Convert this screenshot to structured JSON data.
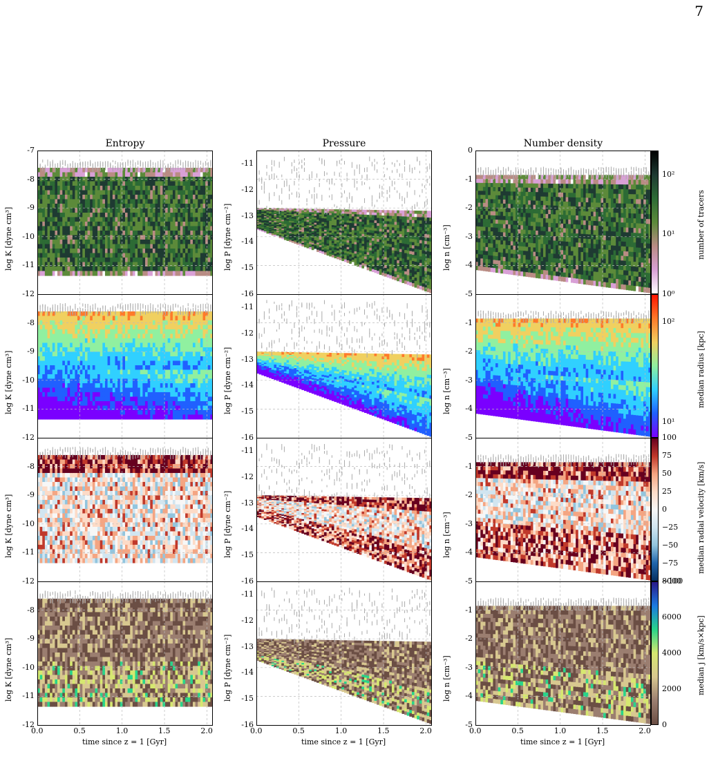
{
  "page_number": "7",
  "columns": [
    "Entropy",
    "Pressure",
    "Number density"
  ],
  "ylabels": [
    "log K [dyne cm³]",
    "log P [dyne cm⁻²]",
    "log n [cm⁻³]"
  ],
  "xlabel": "time since z = 1 [Gyr]",
  "x_ticks": [
    "0.0",
    "0.5",
    "1.0",
    "1.5",
    "2.0"
  ],
  "y_ticks": {
    "entropy": [
      "-7",
      "-8",
      "-9",
      "-10",
      "-11",
      "-12"
    ],
    "pressure": [
      "-11",
      "-12",
      "-13",
      "-14",
      "-15",
      "-16"
    ],
    "density": [
      "0",
      "-1",
      "-2",
      "-3",
      "-4",
      "-5"
    ]
  },
  "colorbars": [
    {
      "label": "number of tracers",
      "ticks": [
        "10²",
        "10¹",
        "10⁰"
      ],
      "colors": [
        "#000000",
        "#1e3a32",
        "#2d6b35",
        "#5c8a3a",
        "#b98c84",
        "#d9a0d6",
        "#ffffff"
      ]
    },
    {
      "label": "median radius [kpc]",
      "ticks": [
        "10²",
        "10¹"
      ],
      "colors": [
        "#ff1500",
        "#ff7a2a",
        "#f0d060",
        "#90f0a0",
        "#30d0ff",
        "#2060ff",
        "#7a00ff"
      ]
    },
    {
      "label": "median radial velocity [km/s]",
      "ticks": [
        "100",
        "75",
        "50",
        "25",
        "0",
        "−25",
        "−50",
        "−75",
        "−100"
      ],
      "colors": [
        "#67001f",
        "#c0392b",
        "#f4a582",
        "#fddbc7",
        "#f7f7f7",
        "#d1e5f0",
        "#92c5de",
        "#2166ac",
        "#053061"
      ]
    },
    {
      "label": "median j [km/s×kpc]",
      "ticks": [
        "8000",
        "6000",
        "4000",
        "2000",
        "0"
      ],
      "colors": [
        "#2a1a8a",
        "#1b7ae0",
        "#2ad48a",
        "#d6e870",
        "#d8c890",
        "#9b7e70",
        "#6b4e44"
      ]
    }
  ],
  "chart_data": {
    "type": "heatmap",
    "title": "",
    "xlabel": "time since z = 1 [Gyr]",
    "xlim": [
      0.0,
      2.07
    ],
    "columns": [
      {
        "title": "Entropy",
        "ylabel": "log K [dyne cm³]",
        "ylim": [
          -12,
          -7
        ]
      },
      {
        "title": "Pressure",
        "ylabel": "log P [dyne cm⁻²]",
        "ylim": [
          -16,
          -10.5
        ]
      },
      {
        "title": "Number density",
        "ylabel": "log n [cm⁻³]",
        "ylim": [
          -5,
          0
        ]
      }
    ],
    "rows": [
      {
        "quantity": "number of tracers",
        "scale": "log",
        "range": [
          1,
          200
        ]
      },
      {
        "quantity": "median radius [kpc]",
        "scale": "log",
        "range": [
          8,
          200
        ]
      },
      {
        "quantity": "median radial velocity [km/s]",
        "scale": "linear",
        "range": [
          -100,
          100
        ]
      },
      {
        "quantity": "median j [km/s×kpc]",
        "scale": "linear",
        "range": [
          0,
          9000
        ]
      }
    ],
    "grid": true
  }
}
